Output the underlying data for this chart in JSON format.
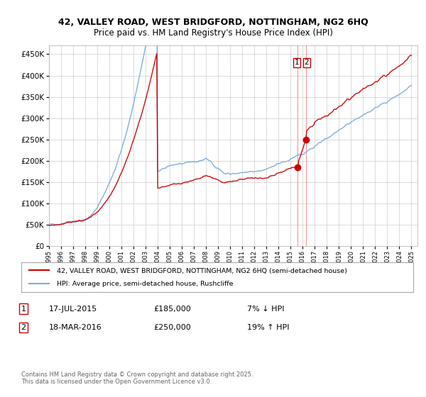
{
  "title": "42, VALLEY ROAD, WEST BRIDGFORD, NOTTINGHAM, NG2 6HQ",
  "subtitle": "Price paid vs. HM Land Registry's House Price Index (HPI)",
  "yticks": [
    0,
    50000,
    100000,
    150000,
    200000,
    250000,
    300000,
    350000,
    400000,
    450000
  ],
  "ylim": [
    0,
    470000
  ],
  "legend_line1": "42, VALLEY ROAD, WEST BRIDGFORD, NOTTINGHAM, NG2 6HQ (semi-detached house)",
  "legend_line2": "HPI: Average price, semi-detached house, Rushcliffe",
  "transaction1_date": "17-JUL-2015",
  "transaction1_price": "£185,000",
  "transaction1_hpi": "7% ↓ HPI",
  "transaction2_date": "18-MAR-2016",
  "transaction2_price": "£250,000",
  "transaction2_hpi": "19% ↑ HPI",
  "red_line_color": "#cc0000",
  "blue_line_color": "#7aabdb",
  "vline_color": "#ff6666",
  "dot_color": "#cc0000",
  "footnote": "Contains HM Land Registry data © Crown copyright and database right 2025.\nThis data is licensed under the Open Government Licence v3.0.",
  "background_color": "#ffffff",
  "grid_color": "#cccccc"
}
